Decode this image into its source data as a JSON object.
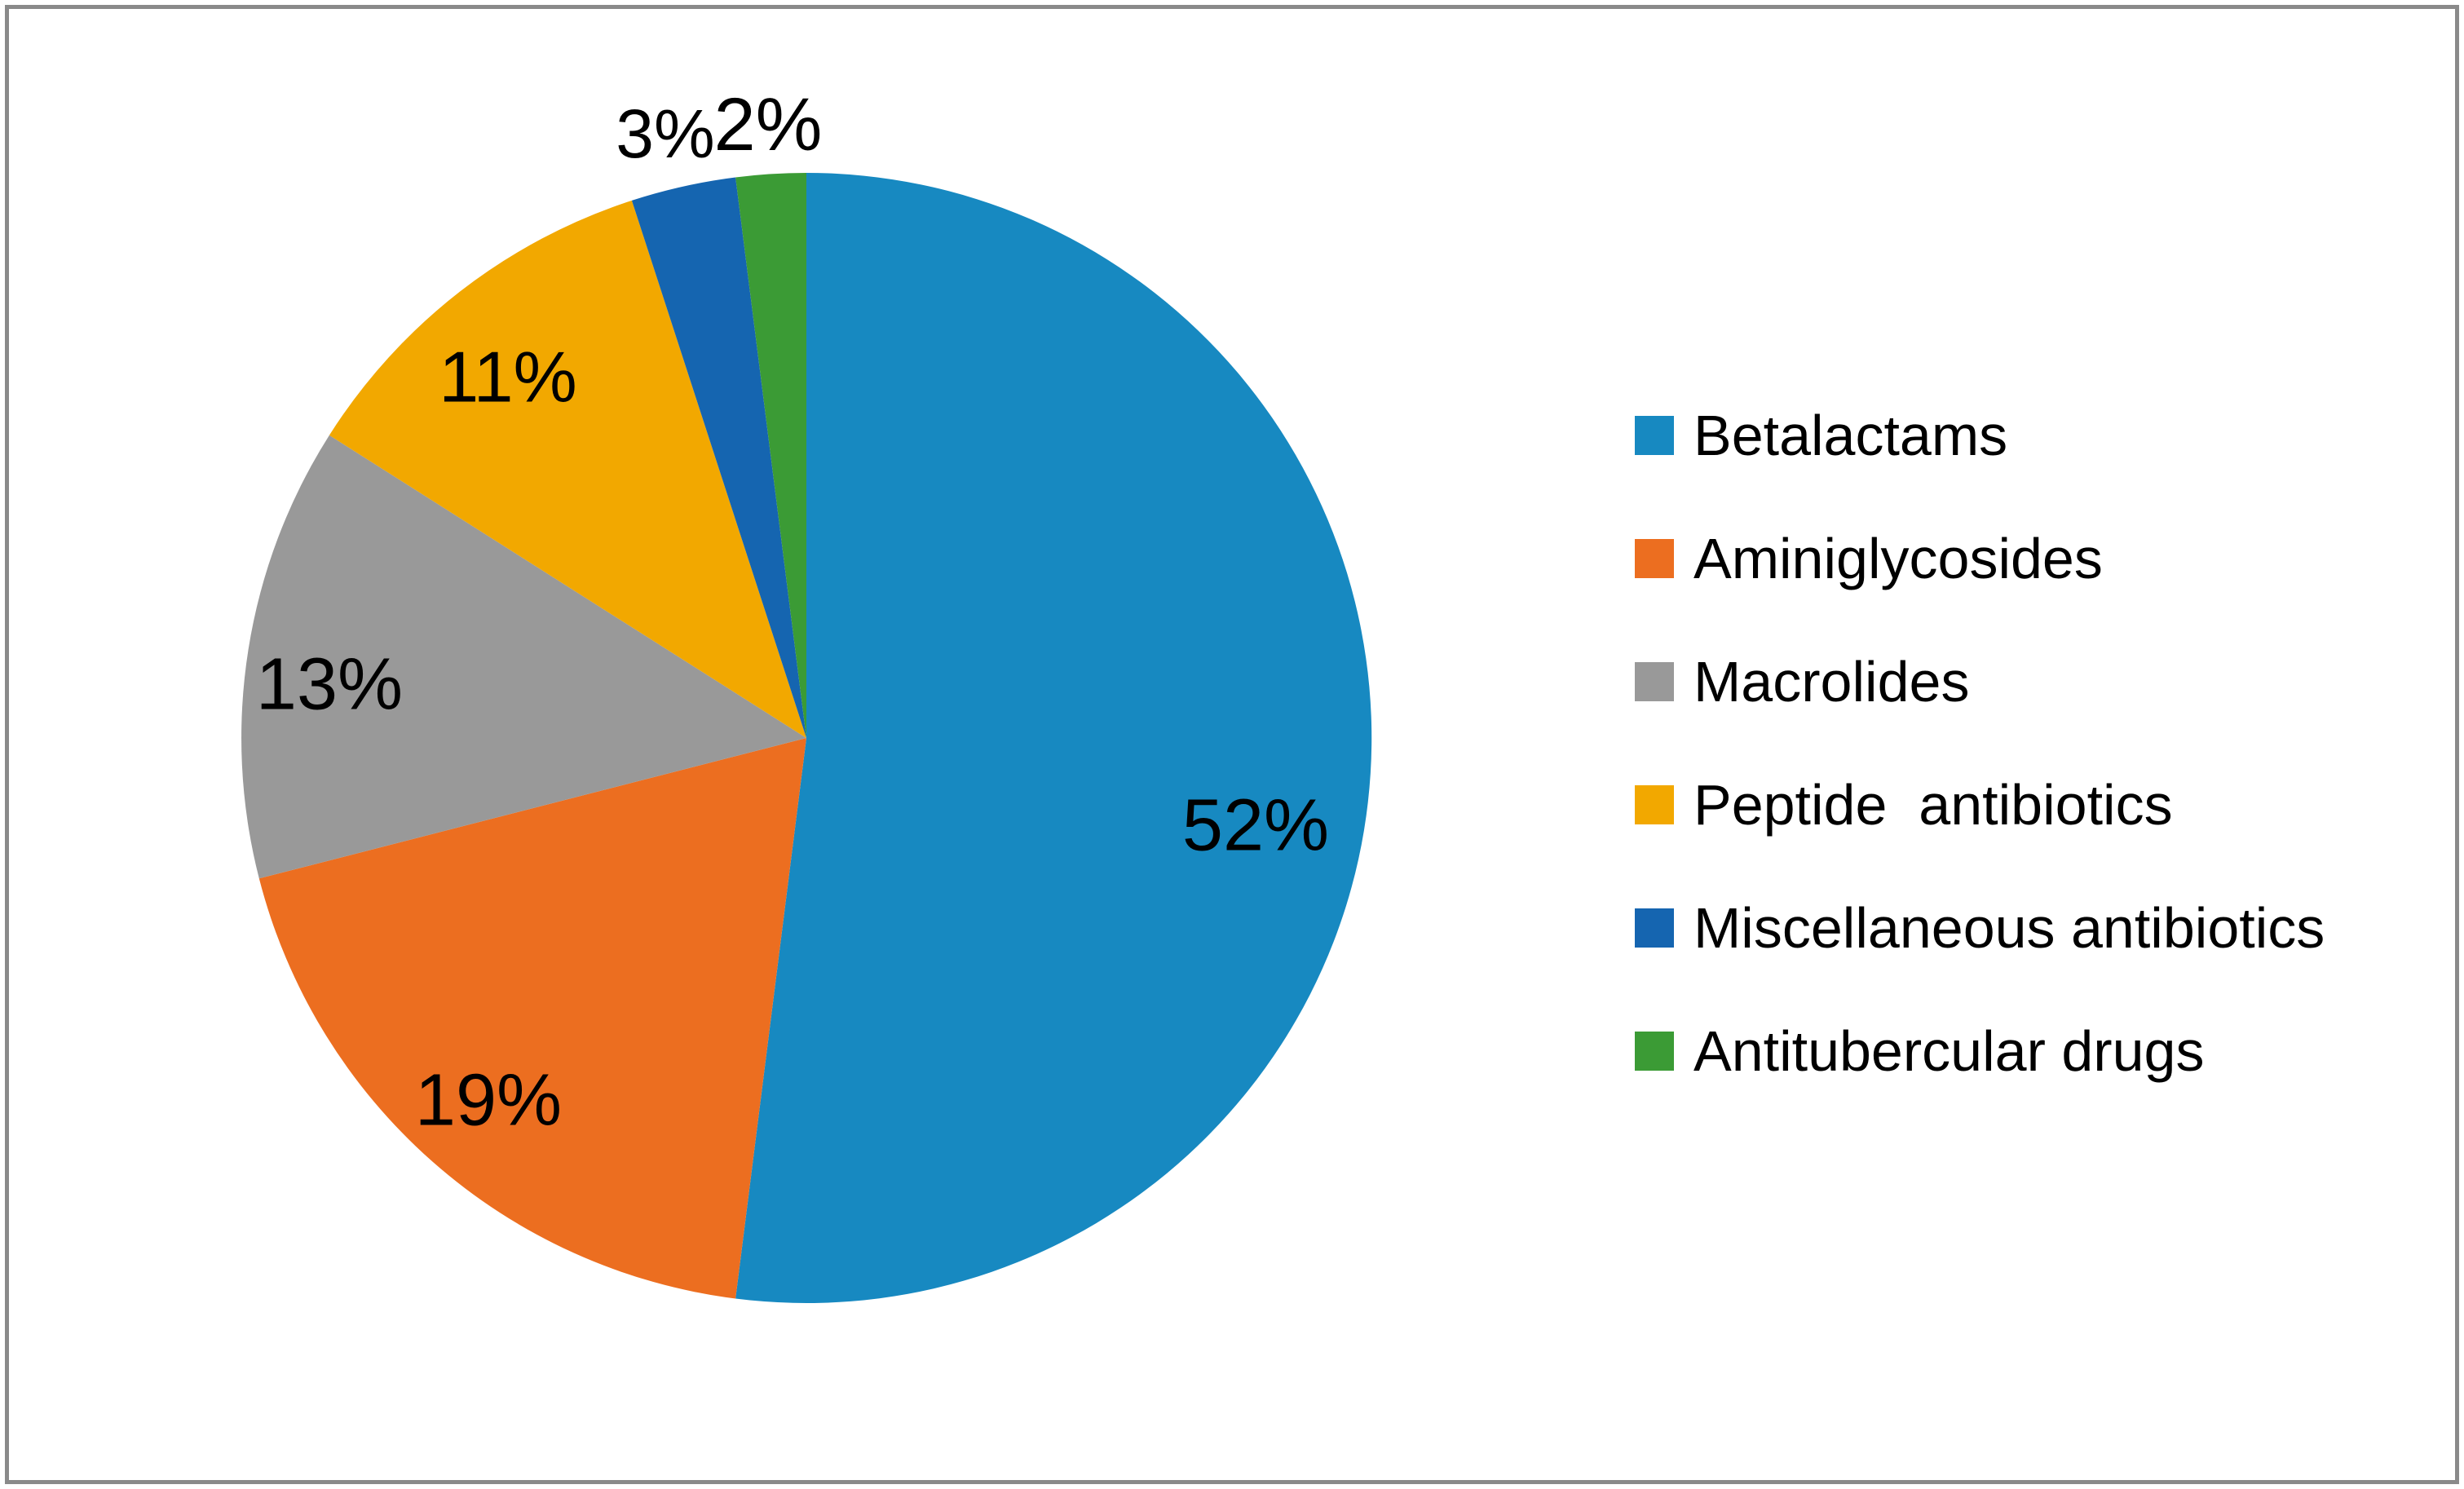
{
  "chart_data": {
    "type": "pie",
    "title": "",
    "legend_position": "right",
    "direction": "clockwise",
    "start_angle_deg": 0,
    "text_color": "#000000",
    "frame_color": "#8a8a8a",
    "background_color": "#ffffff",
    "slices": [
      {
        "label": "Betalactams",
        "value": 52,
        "display": "52%",
        "color": "#1789C1"
      },
      {
        "label": "Aminiglycosides",
        "value": 19,
        "display": "19%",
        "color": "#EC6E20"
      },
      {
        "label": "Macrolides",
        "value": 13,
        "display": "13%",
        "color": "#999999"
      },
      {
        "label": "Peptide  antibiotics",
        "value": 11,
        "display": "11%",
        "color": "#F2A800"
      },
      {
        "label": "Miscellaneous antibiotics",
        "value": 3,
        "display": "3%",
        "color": "#1565B0"
      },
      {
        "label": "Antitubercular drugs",
        "value": 2,
        "display": "2%",
        "color": "#3B9B35"
      }
    ]
  }
}
